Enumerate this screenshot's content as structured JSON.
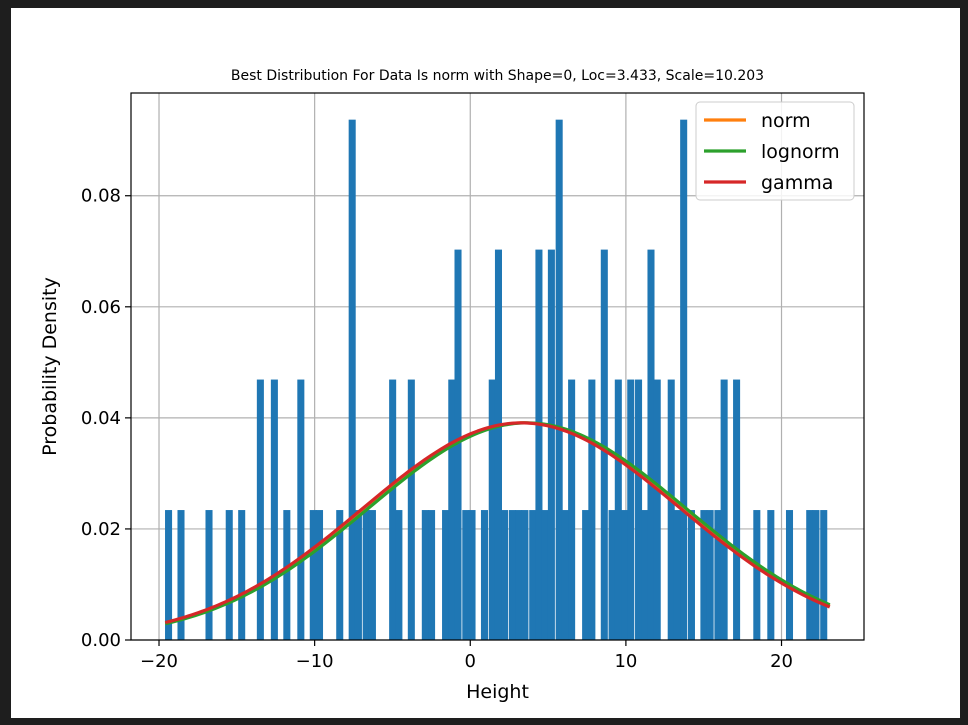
{
  "chart_data": {
    "type": "bar",
    "title": "Best Distribution For Data Is norm with Shape=0, Loc=3.433, Scale=10.203",
    "xlabel": "Height",
    "ylabel": "Probability Density",
    "xlim": [
      -21.8,
      25.3
    ],
    "ylim": [
      0,
      0.0985
    ],
    "xticks": [
      -20,
      -10,
      0,
      10,
      20
    ],
    "xtick_labels": [
      "−20",
      "−10",
      "0",
      "10",
      "20"
    ],
    "yticks": [
      0,
      0.02,
      0.04,
      0.06,
      0.08
    ],
    "ytick_labels": [
      "0.00",
      "0.02",
      "0.04",
      "0.06",
      "0.08"
    ],
    "grid": true,
    "legend_position": "top-right",
    "histogram": {
      "color": "#1f77b4",
      "range": [
        -19.6,
        23.1
      ],
      "bin_count": 100,
      "bins": [
        {
          "x": -19.4,
          "height": 0.0234
        },
        {
          "x": -18.6,
          "height": 0.0234
        },
        {
          "x": -16.8,
          "height": 0.0234
        },
        {
          "x": -15.5,
          "height": 0.0234
        },
        {
          "x": -14.7,
          "height": 0.0234
        },
        {
          "x": -13.5,
          "height": 0.0469
        },
        {
          "x": -12.6,
          "height": 0.0469
        },
        {
          "x": -11.8,
          "height": 0.0234
        },
        {
          "x": -10.9,
          "height": 0.0469
        },
        {
          "x": -10.1,
          "height": 0.0234
        },
        {
          "x": -9.7,
          "height": 0.0234
        },
        {
          "x": -8.4,
          "height": 0.0234
        },
        {
          "x": -7.6,
          "height": 0.0937
        },
        {
          "x": -7.2,
          "height": 0.0234
        },
        {
          "x": -6.7,
          "height": 0.0234
        },
        {
          "x": -6.3,
          "height": 0.0234
        },
        {
          "x": -5.0,
          "height": 0.0469
        },
        {
          "x": -4.6,
          "height": 0.0234
        },
        {
          "x": -3.8,
          "height": 0.0469
        },
        {
          "x": -2.9,
          "height": 0.0234
        },
        {
          "x": -2.5,
          "height": 0.0234
        },
        {
          "x": -1.6,
          "height": 0.0234
        },
        {
          "x": -1.2,
          "height": 0.0469
        },
        {
          "x": -0.8,
          "height": 0.0703
        },
        {
          "x": -0.3,
          "height": 0.0234
        },
        {
          "x": 0.1,
          "height": 0.0234
        },
        {
          "x": 0.9,
          "height": 0.0234
        },
        {
          "x": 1.4,
          "height": 0.0469
        },
        {
          "x": 1.8,
          "height": 0.0703
        },
        {
          "x": 2.2,
          "height": 0.0234
        },
        {
          "x": 2.7,
          "height": 0.0234
        },
        {
          "x": 3.1,
          "height": 0.0234
        },
        {
          "x": 3.5,
          "height": 0.0234
        },
        {
          "x": 4.0,
          "height": 0.0234
        },
        {
          "x": 4.4,
          "height": 0.0703
        },
        {
          "x": 4.8,
          "height": 0.0234
        },
        {
          "x": 5.2,
          "height": 0.0703
        },
        {
          "x": 5.7,
          "height": 0.0937
        },
        {
          "x": 6.1,
          "height": 0.0234
        },
        {
          "x": 6.5,
          "height": 0.0469
        },
        {
          "x": 7.4,
          "height": 0.0234
        },
        {
          "x": 7.8,
          "height": 0.0469
        },
        {
          "x": 8.6,
          "height": 0.0703
        },
        {
          "x": 9.1,
          "height": 0.0234
        },
        {
          "x": 9.5,
          "height": 0.0469
        },
        {
          "x": 9.9,
          "height": 0.0234
        },
        {
          "x": 10.3,
          "height": 0.0469
        },
        {
          "x": 10.8,
          "height": 0.0469
        },
        {
          "x": 11.2,
          "height": 0.0234
        },
        {
          "x": 11.6,
          "height": 0.0703
        },
        {
          "x": 12.0,
          "height": 0.0469
        },
        {
          "x": 12.9,
          "height": 0.0469
        },
        {
          "x": 13.3,
          "height": 0.0234
        },
        {
          "x": 13.7,
          "height": 0.0937
        },
        {
          "x": 14.2,
          "height": 0.0234
        },
        {
          "x": 15.0,
          "height": 0.0234
        },
        {
          "x": 15.4,
          "height": 0.0234
        },
        {
          "x": 15.9,
          "height": 0.0234
        },
        {
          "x": 16.3,
          "height": 0.0469
        },
        {
          "x": 17.1,
          "height": 0.0469
        },
        {
          "x": 18.4,
          "height": 0.0234
        },
        {
          "x": 19.3,
          "height": 0.0234
        },
        {
          "x": 20.5,
          "height": 0.0234
        },
        {
          "x": 21.8,
          "height": 0.0234
        },
        {
          "x": 22.2,
          "height": 0.0234
        },
        {
          "x": 22.7,
          "height": 0.0234
        }
      ]
    },
    "series": [
      {
        "name": "norm",
        "color": "#ff7f0e",
        "dist": "norm",
        "loc": 3.433,
        "scale": 10.203
      },
      {
        "name": "lognorm",
        "color": "#2ca02c",
        "dist": "norm",
        "loc": 3.65,
        "scale": 10.203
      },
      {
        "name": "gamma",
        "color": "#d62728",
        "dist": "norm",
        "loc": 3.3,
        "scale": 10.203
      }
    ],
    "curve_range": [
      -19.6,
      23.1
    ]
  }
}
